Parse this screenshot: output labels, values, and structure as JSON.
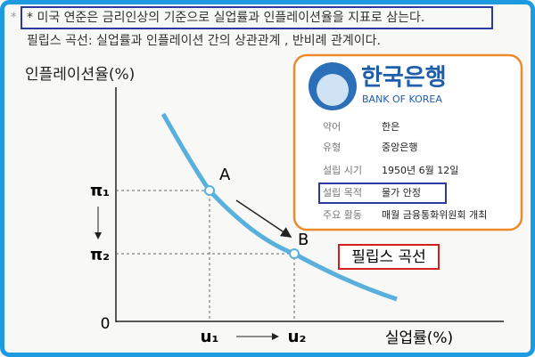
{
  "header": {
    "note": "* 미국 연준은 금리인상의 기준으로 실업률과 인플레이션율을 지표로 삼는다.",
    "definition": "필립스 곡선: 실업률과 인플레이션 간의 상관관계 , 반비례 관계이다."
  },
  "diagram": {
    "y_axis_label": "인플레이션율(%)",
    "x_axis_label": "실업률(%)",
    "origin": "0",
    "y_levels": [
      "π₁",
      "π₂"
    ],
    "x_levels": [
      "u₁",
      "u₂"
    ],
    "points": [
      "A",
      "B"
    ],
    "curve_label": "필립스 곡선"
  },
  "info_box": {
    "logo_name": "한국은행",
    "logo_subtitle": "BANK OF KOREA",
    "rows": [
      [
        "약어",
        "한은"
      ],
      [
        "유형",
        "중앙은행"
      ],
      [
        "설립 시기",
        "1950년 6월 12일"
      ],
      [
        "설립 목적",
        "물가 안정"
      ],
      [
        "주요 활동",
        "매월 금융통화위원회 개최"
      ]
    ]
  }
}
